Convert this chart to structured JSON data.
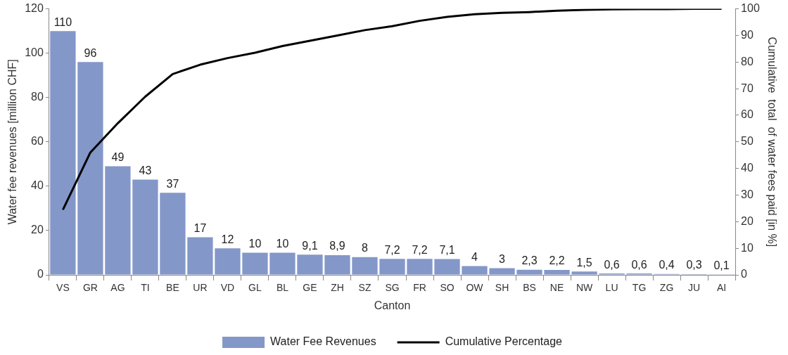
{
  "chart_data": {
    "type": "bar",
    "xlabel": "Canton",
    "ylabel": "Water fee revenues [million CHF]",
    "y2label": "Cumulative  total  of water fees paid [in %]",
    "categories": [
      "VS",
      "GR",
      "AG",
      "TI",
      "BE",
      "UR",
      "VD",
      "GL",
      "BL",
      "GE",
      "ZH",
      "SZ",
      "SG",
      "FR",
      "SO",
      "OW",
      "SH",
      "BS",
      "NE",
      "NW",
      "LU",
      "TG",
      "ZG",
      "JU",
      "AI"
    ],
    "series": [
      {
        "name": "Water Fee Revenues",
        "color": "#8497c9",
        "values": [
          110,
          96,
          49,
          43,
          37,
          17,
          12,
          10,
          10,
          9.1,
          8.9,
          8,
          7.2,
          7.2,
          7.1,
          4,
          3,
          2.3,
          2.2,
          1.5,
          0.6,
          0.6,
          0.4,
          0.3,
          0.1
        ],
        "value_labels": [
          "110",
          "96",
          "49",
          "43",
          "37",
          "17",
          "12",
          "10",
          "10",
          "9,1",
          "8,9",
          "8",
          "7,2",
          "7,2",
          "7,1",
          "4",
          "3",
          "2,3",
          "2,2",
          "1,5",
          "0,6",
          "0,6",
          "0,4",
          "0,3",
          "0,1"
        ]
      },
      {
        "name": "Cumulative Percentage",
        "type": "line",
        "axis": "y2",
        "color": "#000000",
        "marker": "none",
        "values": [
          24.5,
          46,
          57,
          67,
          75.5,
          79,
          81.5,
          83.5,
          86,
          88,
          90,
          92,
          93.5,
          95.5,
          97,
          98,
          98.5,
          98.8,
          99.3,
          99.6,
          99.8,
          99.9,
          99.9,
          100,
          100
        ]
      }
    ],
    "ylim": [
      0,
      120
    ],
    "yticks": [
      0,
      20,
      40,
      60,
      80,
      100,
      120
    ],
    "y2lim": [
      0,
      100
    ],
    "y2ticks": [
      0,
      10,
      20,
      30,
      40,
      50,
      60,
      70,
      80,
      90,
      100
    ],
    "grid": false,
    "legend": "bottom"
  }
}
